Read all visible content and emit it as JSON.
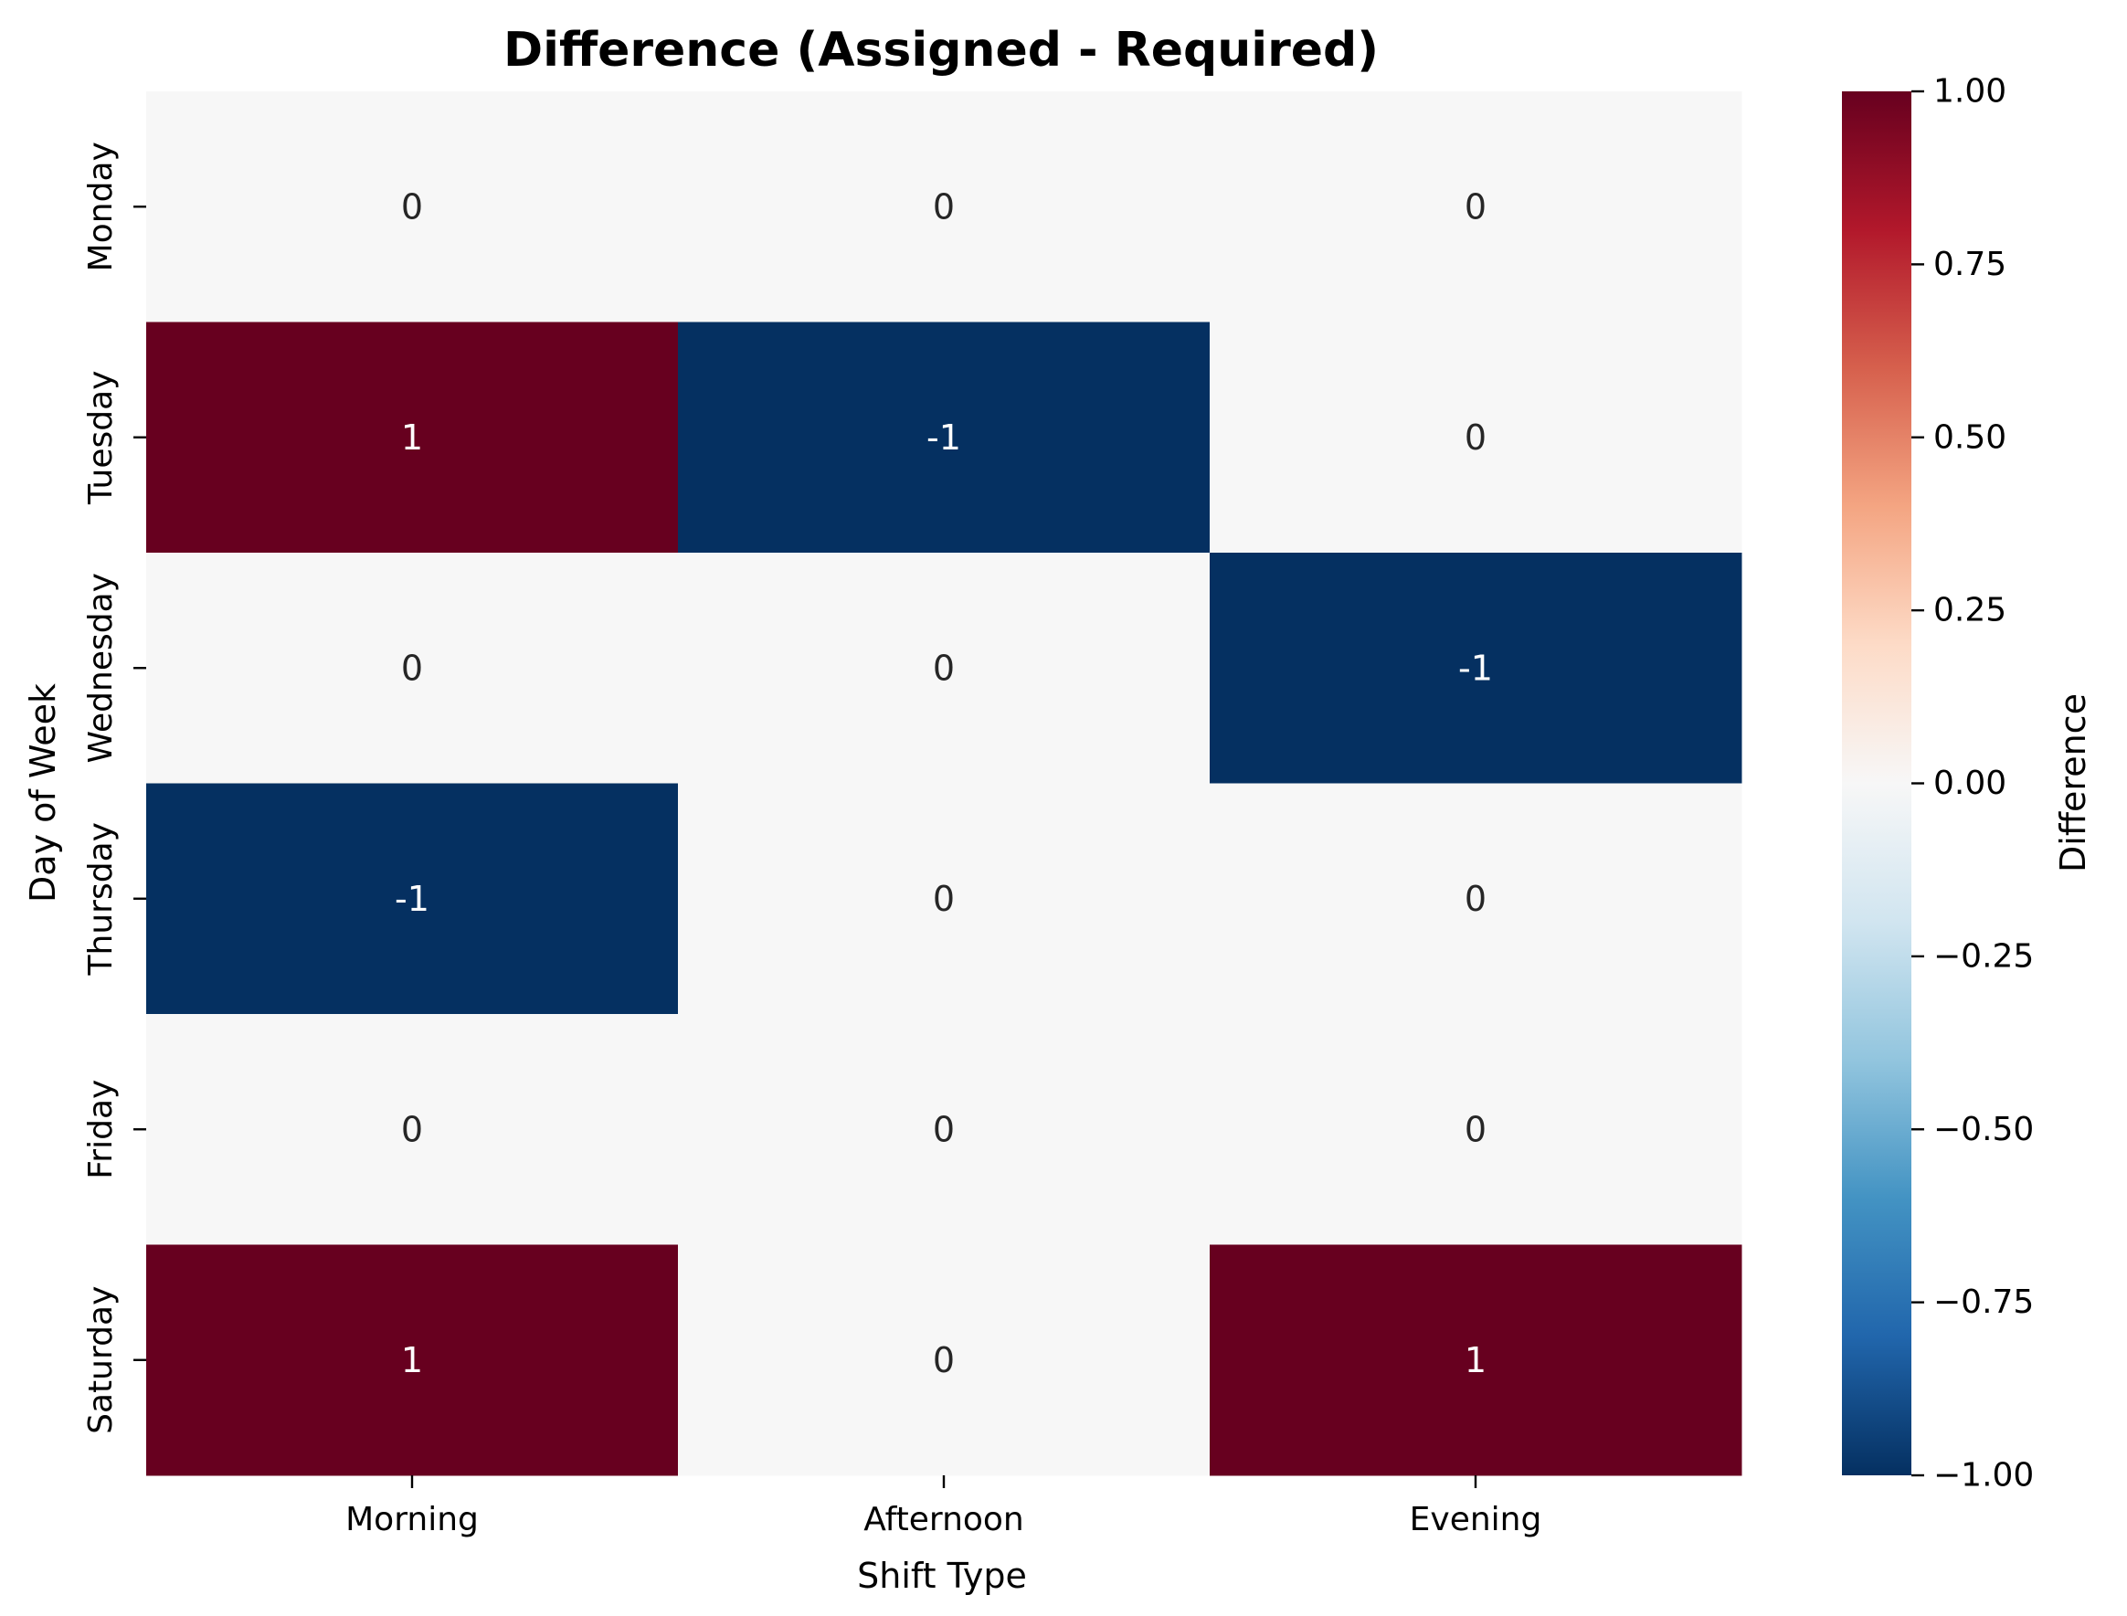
{
  "chart_data": {
    "type": "heatmap",
    "title": "Difference (Assigned - Required)",
    "xlabel": "Shift Type",
    "ylabel": "Day of Week",
    "x_categories": [
      "Morning",
      "Afternoon",
      "Evening"
    ],
    "y_categories": [
      "Monday",
      "Tuesday",
      "Wednesday",
      "Thursday",
      "Friday",
      "Saturday"
    ],
    "values": [
      [
        0,
        0,
        0
      ],
      [
        1,
        -1,
        0
      ],
      [
        0,
        0,
        -1
      ],
      [
        -1,
        0,
        0
      ],
      [
        0,
        0,
        0
      ],
      [
        1,
        0,
        1
      ]
    ],
    "value_labels": [
      [
        "0",
        "0",
        "0"
      ],
      [
        "1",
        "-1",
        "0"
      ],
      [
        "0",
        "0",
        "-1"
      ],
      [
        "-1",
        "0",
        "0"
      ],
      [
        "0",
        "0",
        "0"
      ],
      [
        "1",
        "0",
        "1"
      ]
    ],
    "colormap": "RdBu_r",
    "vmin": -1.0,
    "vmax": 1.0,
    "colorbar": {
      "label": "Difference",
      "ticks": [
        1.0,
        0.75,
        0.5,
        0.25,
        0.0,
        -0.25,
        -0.5,
        -0.75,
        -1.0
      ],
      "tick_labels": [
        "1.00",
        "0.75",
        "0.50",
        "0.25",
        "0.00",
        "−0.25",
        "−0.50",
        "−0.75",
        "−1.00"
      ]
    },
    "colors": {
      "positive": "#67001f",
      "negative": "#053061",
      "zero": "#f7f7f7"
    },
    "grid": false
  }
}
